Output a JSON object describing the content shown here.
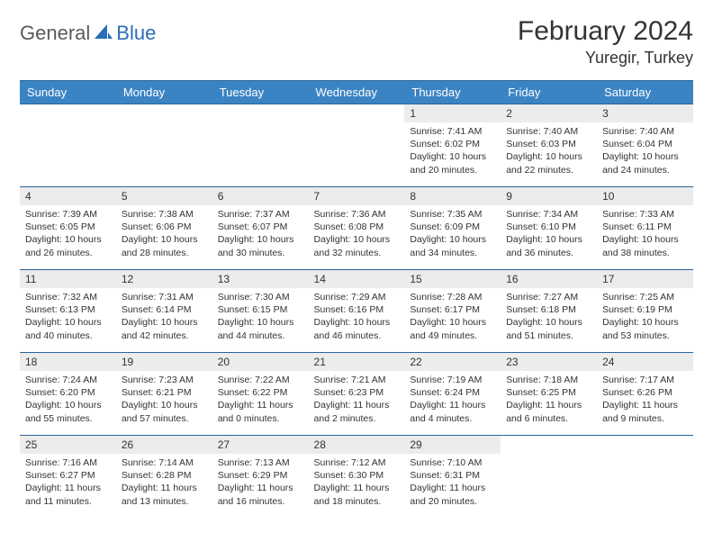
{
  "brand": {
    "part1": "General",
    "part2": "Blue"
  },
  "title": "February 2024",
  "location": "Yuregir, Turkey",
  "colors": {
    "header_bg": "#3b84c4",
    "header_border": "#2a6599",
    "daynum_bg": "#ececec",
    "brand_gray": "#5a5a5a",
    "brand_blue": "#2a6db8",
    "text": "#333333",
    "page_bg": "#ffffff"
  },
  "weekdays": [
    "Sunday",
    "Monday",
    "Tuesday",
    "Wednesday",
    "Thursday",
    "Friday",
    "Saturday"
  ],
  "weeks": [
    [
      {
        "n": "",
        "sr": "",
        "ss": "",
        "dl": ""
      },
      {
        "n": "",
        "sr": "",
        "ss": "",
        "dl": ""
      },
      {
        "n": "",
        "sr": "",
        "ss": "",
        "dl": ""
      },
      {
        "n": "",
        "sr": "",
        "ss": "",
        "dl": ""
      },
      {
        "n": "1",
        "sr": "Sunrise: 7:41 AM",
        "ss": "Sunset: 6:02 PM",
        "dl": "Daylight: 10 hours and 20 minutes."
      },
      {
        "n": "2",
        "sr": "Sunrise: 7:40 AM",
        "ss": "Sunset: 6:03 PM",
        "dl": "Daylight: 10 hours and 22 minutes."
      },
      {
        "n": "3",
        "sr": "Sunrise: 7:40 AM",
        "ss": "Sunset: 6:04 PM",
        "dl": "Daylight: 10 hours and 24 minutes."
      }
    ],
    [
      {
        "n": "4",
        "sr": "Sunrise: 7:39 AM",
        "ss": "Sunset: 6:05 PM",
        "dl": "Daylight: 10 hours and 26 minutes."
      },
      {
        "n": "5",
        "sr": "Sunrise: 7:38 AM",
        "ss": "Sunset: 6:06 PM",
        "dl": "Daylight: 10 hours and 28 minutes."
      },
      {
        "n": "6",
        "sr": "Sunrise: 7:37 AM",
        "ss": "Sunset: 6:07 PM",
        "dl": "Daylight: 10 hours and 30 minutes."
      },
      {
        "n": "7",
        "sr": "Sunrise: 7:36 AM",
        "ss": "Sunset: 6:08 PM",
        "dl": "Daylight: 10 hours and 32 minutes."
      },
      {
        "n": "8",
        "sr": "Sunrise: 7:35 AM",
        "ss": "Sunset: 6:09 PM",
        "dl": "Daylight: 10 hours and 34 minutes."
      },
      {
        "n": "9",
        "sr": "Sunrise: 7:34 AM",
        "ss": "Sunset: 6:10 PM",
        "dl": "Daylight: 10 hours and 36 minutes."
      },
      {
        "n": "10",
        "sr": "Sunrise: 7:33 AM",
        "ss": "Sunset: 6:11 PM",
        "dl": "Daylight: 10 hours and 38 minutes."
      }
    ],
    [
      {
        "n": "11",
        "sr": "Sunrise: 7:32 AM",
        "ss": "Sunset: 6:13 PM",
        "dl": "Daylight: 10 hours and 40 minutes."
      },
      {
        "n": "12",
        "sr": "Sunrise: 7:31 AM",
        "ss": "Sunset: 6:14 PM",
        "dl": "Daylight: 10 hours and 42 minutes."
      },
      {
        "n": "13",
        "sr": "Sunrise: 7:30 AM",
        "ss": "Sunset: 6:15 PM",
        "dl": "Daylight: 10 hours and 44 minutes."
      },
      {
        "n": "14",
        "sr": "Sunrise: 7:29 AM",
        "ss": "Sunset: 6:16 PM",
        "dl": "Daylight: 10 hours and 46 minutes."
      },
      {
        "n": "15",
        "sr": "Sunrise: 7:28 AM",
        "ss": "Sunset: 6:17 PM",
        "dl": "Daylight: 10 hours and 49 minutes."
      },
      {
        "n": "16",
        "sr": "Sunrise: 7:27 AM",
        "ss": "Sunset: 6:18 PM",
        "dl": "Daylight: 10 hours and 51 minutes."
      },
      {
        "n": "17",
        "sr": "Sunrise: 7:25 AM",
        "ss": "Sunset: 6:19 PM",
        "dl": "Daylight: 10 hours and 53 minutes."
      }
    ],
    [
      {
        "n": "18",
        "sr": "Sunrise: 7:24 AM",
        "ss": "Sunset: 6:20 PM",
        "dl": "Daylight: 10 hours and 55 minutes."
      },
      {
        "n": "19",
        "sr": "Sunrise: 7:23 AM",
        "ss": "Sunset: 6:21 PM",
        "dl": "Daylight: 10 hours and 57 minutes."
      },
      {
        "n": "20",
        "sr": "Sunrise: 7:22 AM",
        "ss": "Sunset: 6:22 PM",
        "dl": "Daylight: 11 hours and 0 minutes."
      },
      {
        "n": "21",
        "sr": "Sunrise: 7:21 AM",
        "ss": "Sunset: 6:23 PM",
        "dl": "Daylight: 11 hours and 2 minutes."
      },
      {
        "n": "22",
        "sr": "Sunrise: 7:19 AM",
        "ss": "Sunset: 6:24 PM",
        "dl": "Daylight: 11 hours and 4 minutes."
      },
      {
        "n": "23",
        "sr": "Sunrise: 7:18 AM",
        "ss": "Sunset: 6:25 PM",
        "dl": "Daylight: 11 hours and 6 minutes."
      },
      {
        "n": "24",
        "sr": "Sunrise: 7:17 AM",
        "ss": "Sunset: 6:26 PM",
        "dl": "Daylight: 11 hours and 9 minutes."
      }
    ],
    [
      {
        "n": "25",
        "sr": "Sunrise: 7:16 AM",
        "ss": "Sunset: 6:27 PM",
        "dl": "Daylight: 11 hours and 11 minutes."
      },
      {
        "n": "26",
        "sr": "Sunrise: 7:14 AM",
        "ss": "Sunset: 6:28 PM",
        "dl": "Daylight: 11 hours and 13 minutes."
      },
      {
        "n": "27",
        "sr": "Sunrise: 7:13 AM",
        "ss": "Sunset: 6:29 PM",
        "dl": "Daylight: 11 hours and 16 minutes."
      },
      {
        "n": "28",
        "sr": "Sunrise: 7:12 AM",
        "ss": "Sunset: 6:30 PM",
        "dl": "Daylight: 11 hours and 18 minutes."
      },
      {
        "n": "29",
        "sr": "Sunrise: 7:10 AM",
        "ss": "Sunset: 6:31 PM",
        "dl": "Daylight: 11 hours and 20 minutes."
      },
      {
        "n": "",
        "sr": "",
        "ss": "",
        "dl": ""
      },
      {
        "n": "",
        "sr": "",
        "ss": "",
        "dl": ""
      }
    ]
  ]
}
